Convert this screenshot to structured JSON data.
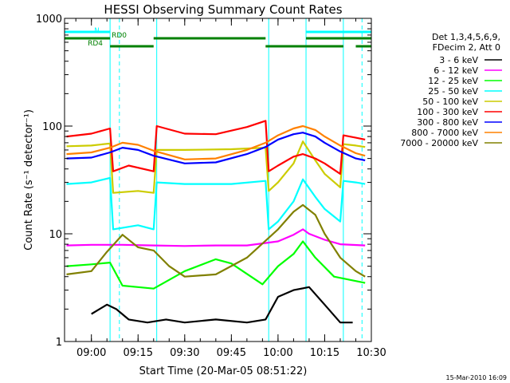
{
  "chart_data": {
    "type": "line",
    "title": "HESSI Observing Summary Count Rates",
    "xlabel": "Start Time (20-Mar-05 08:51:22)",
    "ylabel": "Count Rate (s⁻¹ detector⁻¹)",
    "yscale": "log",
    "ylim": [
      1,
      1000
    ],
    "xlim": [
      "08:51:22",
      "10:30:00"
    ],
    "x_ticks": [
      "09:00",
      "09:15",
      "09:30",
      "09:45",
      "10:00",
      "10:15",
      "10:30"
    ],
    "y_ticks": [
      "1",
      "10",
      "100",
      "1000"
    ],
    "grid": false,
    "legend_position": "right",
    "legend_header": [
      "Det 1,3,4,5,6,9,",
      "FDecim 2, Att 0"
    ],
    "timestamp": "15-Mar-2010 16:09",
    "series": [
      {
        "name": "3 - 6 keV",
        "color": "#000000",
        "x": [
          "09:00",
          "09:05",
          "09:08",
          "09:12",
          "09:18",
          "09:24",
          "09:30",
          "09:40",
          "09:50",
          "09:56",
          "10:00",
          "10:05",
          "10:10",
          "10:15",
          "10:20",
          "10:24"
        ],
        "y": [
          1.8,
          2.2,
          2.0,
          1.6,
          1.5,
          1.6,
          1.5,
          1.6,
          1.5,
          1.6,
          2.6,
          3.0,
          3.2,
          2.2,
          1.5,
          1.5
        ]
      },
      {
        "name": "6 - 12 keV",
        "color": "#ff00ff",
        "x": [
          "08:52",
          "09:00",
          "09:10",
          "09:20",
          "09:30",
          "09:40",
          "09:50",
          "10:00",
          "10:05",
          "10:08",
          "10:10",
          "10:15",
          "10:20",
          "10:28"
        ],
        "y": [
          7.8,
          7.9,
          7.9,
          7.8,
          7.7,
          7.8,
          7.8,
          8.5,
          9.8,
          11.0,
          10.0,
          8.8,
          8.0,
          7.8
        ]
      },
      {
        "name": "12 - 25 keV",
        "color": "#00ff00",
        "x": [
          "08:52",
          "09:00",
          "09:06",
          "09:10",
          "09:15",
          "09:20",
          "09:30",
          "09:40",
          "09:45",
          "09:55",
          "10:00",
          "10:05",
          "10:08",
          "10:12",
          "10:18",
          "10:28"
        ],
        "y": [
          5.0,
          5.2,
          5.4,
          3.3,
          3.2,
          3.1,
          4.5,
          5.8,
          5.3,
          3.4,
          5.0,
          6.5,
          8.5,
          6.0,
          4.0,
          3.5
        ]
      },
      {
        "name": "25 - 50 keV",
        "color": "#00ffff",
        "x": [
          "08:52",
          "09:00",
          "09:06",
          "09:07",
          "09:15",
          "09:20",
          "09:21",
          "09:30",
          "09:45",
          "09:56",
          "09:57",
          "10:00",
          "10:05",
          "10:08",
          "10:12",
          "10:15",
          "10:20",
          "10:21",
          "10:25",
          "10:28"
        ],
        "y": [
          29,
          30,
          33,
          11,
          12,
          11,
          30,
          29,
          29,
          31,
          11,
          13,
          20,
          32,
          22,
          17,
          13,
          31,
          30,
          29
        ]
      },
      {
        "name": "50 - 100 keV",
        "color": "#cccc00",
        "x": [
          "08:52",
          "09:00",
          "09:06",
          "09:07",
          "09:15",
          "09:20",
          "09:21",
          "09:30",
          "09:45",
          "09:56",
          "09:57",
          "10:00",
          "10:05",
          "10:08",
          "10:12",
          "10:15",
          "10:20",
          "10:21",
          "10:25",
          "10:28"
        ],
        "y": [
          65,
          66,
          69,
          24,
          25,
          24,
          60,
          60,
          61,
          63,
          25,
          30,
          45,
          72,
          48,
          36,
          27,
          68,
          66,
          64
        ]
      },
      {
        "name": "100 - 300 keV",
        "color": "#ff0000",
        "x": [
          "08:52",
          "09:00",
          "09:06",
          "09:07",
          "09:12",
          "09:20",
          "09:21",
          "09:30",
          "09:40",
          "09:50",
          "09:56",
          "09:57",
          "10:00",
          "10:05",
          "10:08",
          "10:12",
          "10:15",
          "10:20",
          "10:21",
          "10:25",
          "10:28"
        ],
        "y": [
          80,
          85,
          95,
          38,
          43,
          38,
          100,
          85,
          84,
          98,
          112,
          38,
          43,
          52,
          55,
          50,
          45,
          36,
          82,
          78,
          75
        ]
      },
      {
        "name": "300 - 800 keV",
        "color": "#0000ff",
        "x": [
          "08:52",
          "09:00",
          "09:06",
          "09:10",
          "09:15",
          "09:20",
          "09:30",
          "09:40",
          "09:50",
          "09:56",
          "10:00",
          "10:05",
          "10:08",
          "10:12",
          "10:15",
          "10:20",
          "10:25",
          "10:28"
        ],
        "y": [
          50,
          51,
          57,
          63,
          60,
          53,
          45,
          46,
          55,
          64,
          75,
          84,
          87,
          80,
          70,
          58,
          50,
          48
        ]
      },
      {
        "name": "800 - 7000 keV",
        "color": "#ff8000",
        "x": [
          "08:52",
          "09:00",
          "09:06",
          "09:10",
          "09:15",
          "09:20",
          "09:30",
          "09:40",
          "09:50",
          "09:56",
          "10:00",
          "10:05",
          "10:08",
          "10:12",
          "10:15",
          "10:20",
          "10:25",
          "10:28"
        ],
        "y": [
          55,
          57,
          63,
          70,
          67,
          59,
          49,
          50,
          60,
          70,
          82,
          95,
          100,
          92,
          80,
          66,
          56,
          53
        ]
      },
      {
        "name": "7000 - 20000 keV",
        "color": "#808000",
        "x": [
          "08:52",
          "09:00",
          "09:05",
          "09:10",
          "09:15",
          "09:20",
          "09:25",
          "09:30",
          "09:40",
          "09:50",
          "10:00",
          "10:05",
          "10:08",
          "10:12",
          "10:15",
          "10:20",
          "10:25",
          "10:28"
        ],
        "y": [
          4.2,
          4.5,
          6.8,
          9.8,
          7.5,
          7.0,
          5.0,
          4.0,
          4.2,
          6.0,
          11.0,
          16.0,
          18.5,
          15.0,
          10.0,
          6.0,
          4.5,
          4.0
        ]
      }
    ],
    "flag_bars": [
      {
        "label": "N",
        "color": "#00ffff",
        "level": 1,
        "intervals": [
          [
            "08:51:22",
            "09:06"
          ],
          [
            "10:09",
            "10:30"
          ]
        ]
      },
      {
        "label": "RD0",
        "color": "#008000",
        "level": 2,
        "intervals": [
          [
            "08:51:22",
            "09:06"
          ],
          [
            "09:20",
            "09:56"
          ],
          [
            "10:09",
            "10:30"
          ]
        ]
      },
      {
        "label": "RD4",
        "color": "#008000",
        "level": 3,
        "intervals": [
          [
            "09:06",
            "09:20"
          ],
          [
            "09:56",
            "10:21"
          ],
          [
            "10:25",
            "10:30"
          ]
        ]
      }
    ],
    "vertical_markers": [
      {
        "time": "08:51:22",
        "style": "solid"
      },
      {
        "time": "09:06",
        "style": "solid"
      },
      {
        "time": "09:09",
        "style": "dashed"
      },
      {
        "time": "09:21",
        "style": "solid"
      },
      {
        "time": "09:57",
        "style": "solid"
      },
      {
        "time": "10:09",
        "style": "solid"
      },
      {
        "time": "10:21",
        "style": "solid"
      },
      {
        "time": "10:27",
        "style": "dashed"
      }
    ],
    "marker_color": "#00ffff"
  }
}
